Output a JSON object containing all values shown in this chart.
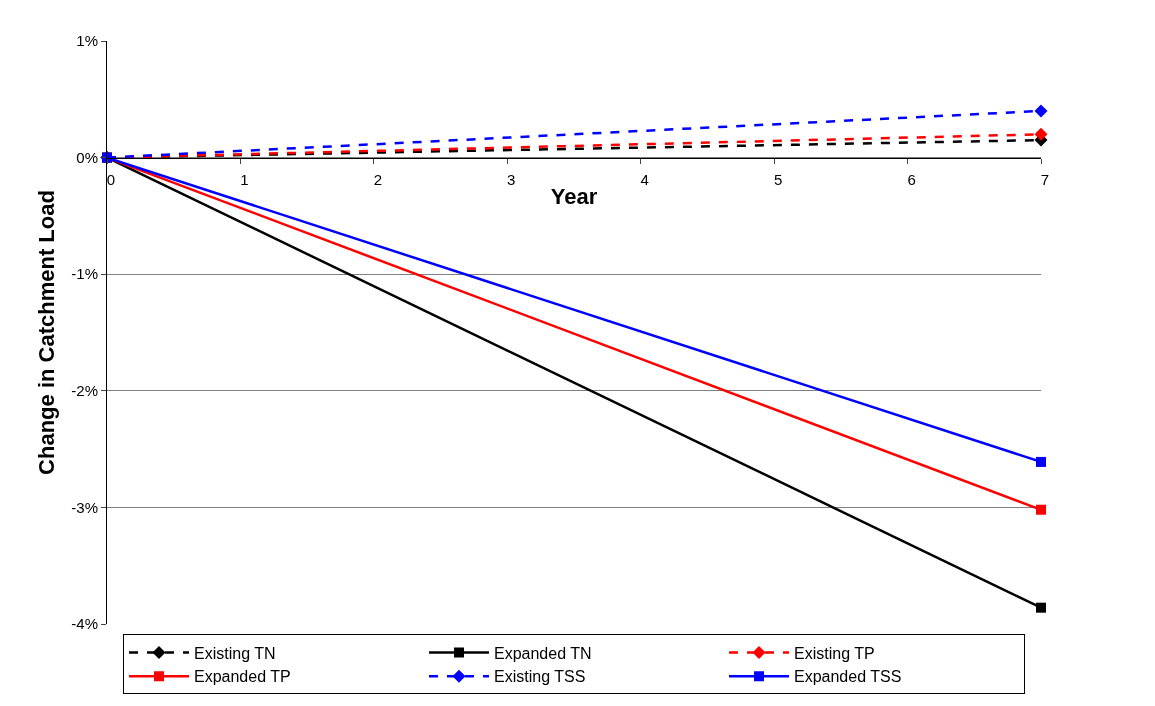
{
  "chart_data": {
    "type": "line",
    "xlabel": "Year",
    "ylabel": "Change in Catchment Load",
    "xlim": [
      0,
      7
    ],
    "xticks": [
      0,
      1,
      2,
      3,
      4,
      5,
      6,
      7
    ],
    "ylim": [
      -4,
      1
    ],
    "yticks": [
      {
        "value": -4,
        "label": "-4%"
      },
      {
        "value": -3,
        "label": "-3%"
      },
      {
        "value": -2,
        "label": "-2%"
      },
      {
        "value": -1,
        "label": "-1%"
      },
      {
        "value": 0,
        "label": "0%"
      },
      {
        "value": 1,
        "label": "1%"
      }
    ],
    "grid": "y",
    "legend": "bottom",
    "x": [
      0,
      7
    ],
    "series": [
      {
        "name": "Existing TN",
        "color": "#000000",
        "values": [
          0,
          0.15
        ],
        "line_style": "dashed",
        "marker": "diamond"
      },
      {
        "name": "Expanded TN",
        "color": "#000000",
        "values": [
          0,
          -3.86
        ],
        "line_style": "solid",
        "marker": "square"
      },
      {
        "name": "Existing TP",
        "color": "#ff0000",
        "values": [
          0,
          0.2
        ],
        "line_style": "dashed",
        "marker": "diamond"
      },
      {
        "name": "Expanded TP",
        "color": "#ff0000",
        "values": [
          0,
          -3.02
        ],
        "line_style": "solid",
        "marker": "square"
      },
      {
        "name": "Existing TSS",
        "color": "#0000ff",
        "values": [
          0,
          0.4
        ],
        "line_style": "dashed",
        "marker": "diamond"
      },
      {
        "name": "Expanded TSS",
        "color": "#0000ff",
        "values": [
          0,
          -2.61
        ],
        "line_style": "solid",
        "marker": "square"
      }
    ]
  }
}
